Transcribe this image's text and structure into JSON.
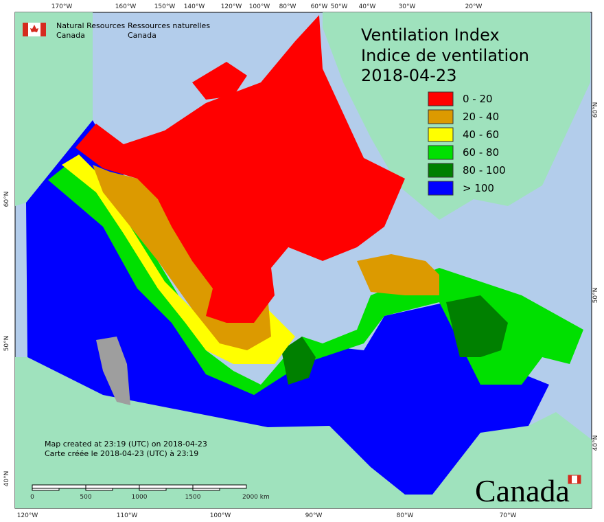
{
  "header": {
    "agency_en": "Natural Resources",
    "agency_en_2": "Canada",
    "agency_fr": "Ressources naturelles",
    "agency_fr_2": "Canada"
  },
  "title": {
    "line1": "Ventilation Index",
    "line2": "Indice de ventilation",
    "date": "2018-04-23"
  },
  "legend": [
    {
      "label": "0 - 20",
      "color": "#ff0000"
    },
    {
      "label": "20 - 40",
      "color": "#dc9a00"
    },
    {
      "label": "40 - 60",
      "color": "#ffff00"
    },
    {
      "label": "60 - 80",
      "color": "#00e000"
    },
    {
      "label": "80 - 100",
      "color": "#008000"
    },
    {
      "label": "> 100",
      "color": "#0000ff"
    }
  ],
  "graticule": {
    "top": [
      "170°W",
      "160°W",
      "150°W",
      "140°W",
      "120°W",
      "100°W",
      "80°W",
      "60°W",
      "50°W",
      "40°W",
      "30°W",
      "20°W"
    ],
    "bottom": [
      "120°W",
      "110°W",
      "100°W",
      "90°W",
      "80°W",
      "70°W"
    ],
    "left": [
      "60°N",
      "50°N",
      "40°N"
    ],
    "right": [
      "60°N",
      "50°N",
      "40°N"
    ]
  },
  "scale_bar": {
    "labels": [
      "0",
      "500",
      "1000",
      "1500",
      "2000 km"
    ]
  },
  "footer": {
    "created_en": "Map created at 23:19 (UTC) on 2018-04-23",
    "created_fr": "Carte créée le 2018-04-23 (UTC) à 23:19"
  },
  "wordmark": "Canada"
}
